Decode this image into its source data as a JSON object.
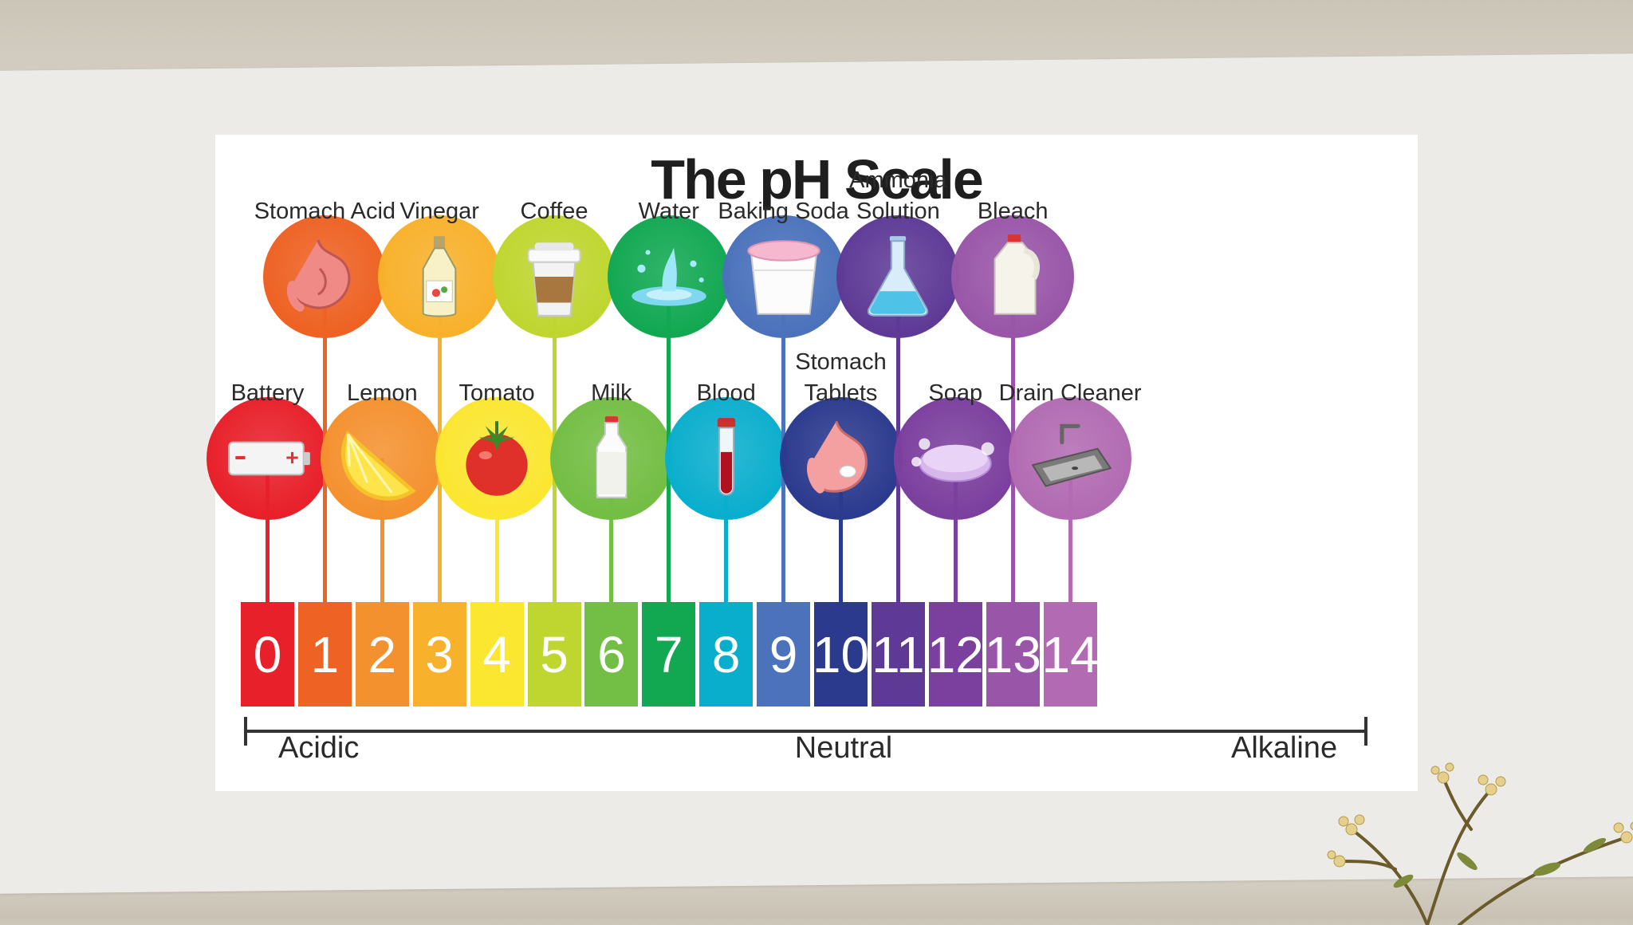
{
  "title": "The pH Scale",
  "scale": [
    {
      "ph": 0,
      "color": "#e8202a"
    },
    {
      "ph": 1,
      "color": "#ee6223"
    },
    {
      "ph": 2,
      "color": "#f4912f"
    },
    {
      "ph": 3,
      "color": "#f8b12b"
    },
    {
      "ph": 4,
      "color": "#fbe630"
    },
    {
      "ph": 5,
      "color": "#bfd630"
    },
    {
      "ph": 6,
      "color": "#73be44"
    },
    {
      "ph": 7,
      "color": "#12a852"
    },
    {
      "ph": 8,
      "color": "#0aaecd"
    },
    {
      "ph": 9,
      "color": "#4b72bb"
    },
    {
      "ph": 10,
      "color": "#2c3a8e"
    },
    {
      "ph": 11,
      "color": "#5e3a96"
    },
    {
      "ph": 12,
      "color": "#7b3f9e"
    },
    {
      "ph": 13,
      "color": "#9956a8"
    },
    {
      "ph": 14,
      "color": "#b26bb2"
    }
  ],
  "substances": [
    {
      "ph": 0,
      "row": "lower",
      "label": [
        "Battery"
      ],
      "icon": "battery-icon"
    },
    {
      "ph": 1,
      "row": "upper",
      "label": [
        "Stomach Acid"
      ],
      "icon": "stomach-icon"
    },
    {
      "ph": 2,
      "row": "lower",
      "label": [
        "Lemon"
      ],
      "icon": "lemon-icon"
    },
    {
      "ph": 3,
      "row": "upper",
      "label": [
        "Vinegar"
      ],
      "icon": "vinegar-bottle-icon"
    },
    {
      "ph": 4,
      "row": "lower",
      "label": [
        "Tomato"
      ],
      "icon": "tomato-icon"
    },
    {
      "ph": 5,
      "row": "upper",
      "label": [
        "Coffee"
      ],
      "icon": "coffee-cup-icon"
    },
    {
      "ph": 6,
      "row": "lower",
      "label": [
        "Milk"
      ],
      "icon": "milk-bottle-icon"
    },
    {
      "ph": 7,
      "row": "upper",
      "label": [
        "Water"
      ],
      "icon": "water-splash-icon"
    },
    {
      "ph": 8,
      "row": "lower",
      "label": [
        "Blood"
      ],
      "icon": "blood-test-tube-icon"
    },
    {
      "ph": 9,
      "row": "upper",
      "label": [
        "Baking Soda"
      ],
      "icon": "baking-soda-tub-icon"
    },
    {
      "ph": 10,
      "row": "lower",
      "label": [
        "Stomach",
        "Tablets"
      ],
      "icon": "stomach-tablet-icon"
    },
    {
      "ph": 11,
      "row": "upper",
      "label": [
        "Ammonia",
        "Solution"
      ],
      "icon": "ammonia-flask-icon"
    },
    {
      "ph": 12,
      "row": "lower",
      "label": [
        "Soap"
      ],
      "icon": "soap-bar-icon"
    },
    {
      "ph": 13,
      "row": "upper",
      "label": [
        "Bleach"
      ],
      "icon": "bleach-jug-icon"
    },
    {
      "ph": 14,
      "row": "lower",
      "label": [
        "Drain Cleaner"
      ],
      "icon": "sink-icon"
    }
  ],
  "axis": {
    "left": "Acidic",
    "center": "Neutral",
    "right": "Alkaline"
  }
}
